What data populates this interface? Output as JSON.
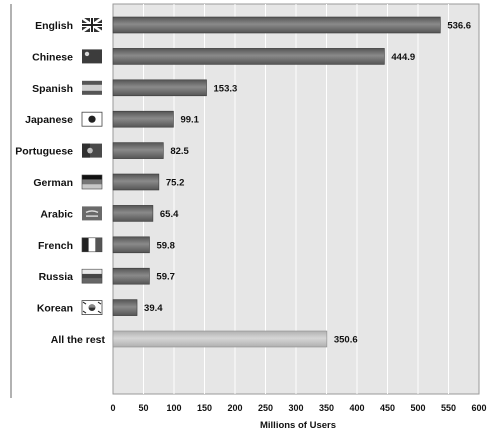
{
  "chart_data": {
    "type": "bar",
    "orientation": "horizontal",
    "categories": [
      "English",
      "Chinese",
      "Spanish",
      "Japanese",
      "Portuguese",
      "German",
      "Arabic",
      "French",
      "Russia",
      "Korean",
      "All the rest"
    ],
    "values": [
      536.6,
      444.9,
      153.3,
      99.1,
      82.5,
      75.2,
      65.4,
      59.8,
      59.7,
      39.4,
      350.6
    ],
    "value_labels": [
      "536.6",
      "444.9",
      "153.3",
      "99.1",
      "82.5",
      "75.2",
      "65.4",
      "59.8",
      "59.7",
      "39.4",
      "350.6"
    ],
    "flag_icons": [
      "uk-flag-icon",
      "china-flag-icon",
      "spain-flag-icon",
      "japan-flag-icon",
      "portugal-flag-icon",
      "germany-flag-icon",
      "arabic-flag-icon",
      "france-flag-icon",
      "russia-flag-icon",
      "korea-flag-icon",
      ""
    ],
    "xlabel": "Millions of Users",
    "xlim": [
      0,
      600
    ],
    "xticks": [
      0,
      50,
      100,
      150,
      200,
      250,
      300,
      350,
      400,
      450,
      500,
      550,
      600
    ],
    "grid": true,
    "colors": {
      "bar": "#555555",
      "bar_highlight": "#8a8a8a",
      "last_bar": "#b0b0b0",
      "last_bar_highlight": "#d6d6d6",
      "plot_background": "#e6e6e6",
      "gridline": "#ffffff"
    }
  }
}
